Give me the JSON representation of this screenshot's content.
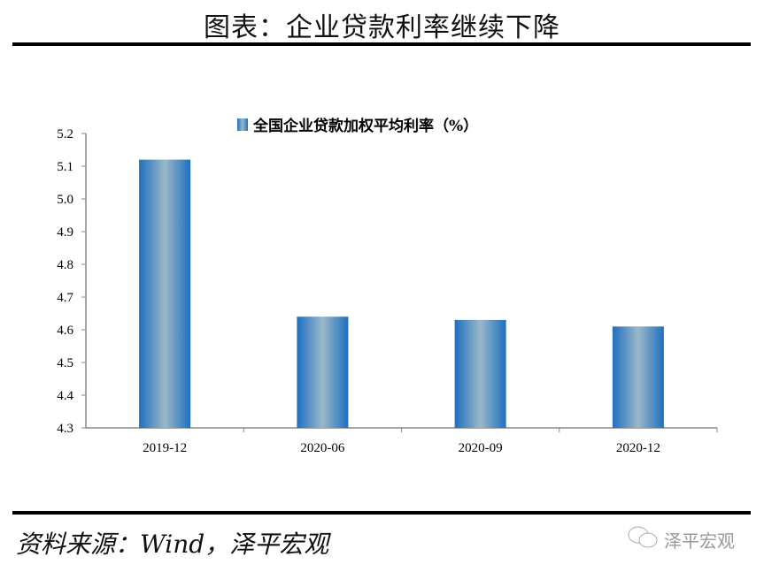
{
  "header": {
    "title": "图表：企业贷款利率继续下降"
  },
  "footer": {
    "source": "资料来源：Wind，泽平宏观",
    "watermark": "泽平宏观",
    "watermark_icon": "wechat-icon"
  },
  "chart_data": {
    "type": "bar",
    "title": "",
    "legend": {
      "entries": [
        "全国企业贷款加权平均利率（%）"
      ],
      "placement": "top-center"
    },
    "categories": [
      "2019-12",
      "2020-06",
      "2020-09",
      "2020-12"
    ],
    "series": [
      {
        "name": "全国企业贷款加权平均利率（%）",
        "values": [
          5.12,
          4.64,
          4.63,
          4.61
        ]
      }
    ],
    "ylim": [
      4.3,
      5.2
    ],
    "yticks": [
      "4.3",
      "4.4",
      "4.5",
      "4.6",
      "4.7",
      "4.8",
      "4.9",
      "5.0",
      "5.1",
      "5.2"
    ],
    "grid": false,
    "colors": {
      "bar_edge": "#1f6fc0",
      "bar_center": "#9ab8c8"
    }
  }
}
